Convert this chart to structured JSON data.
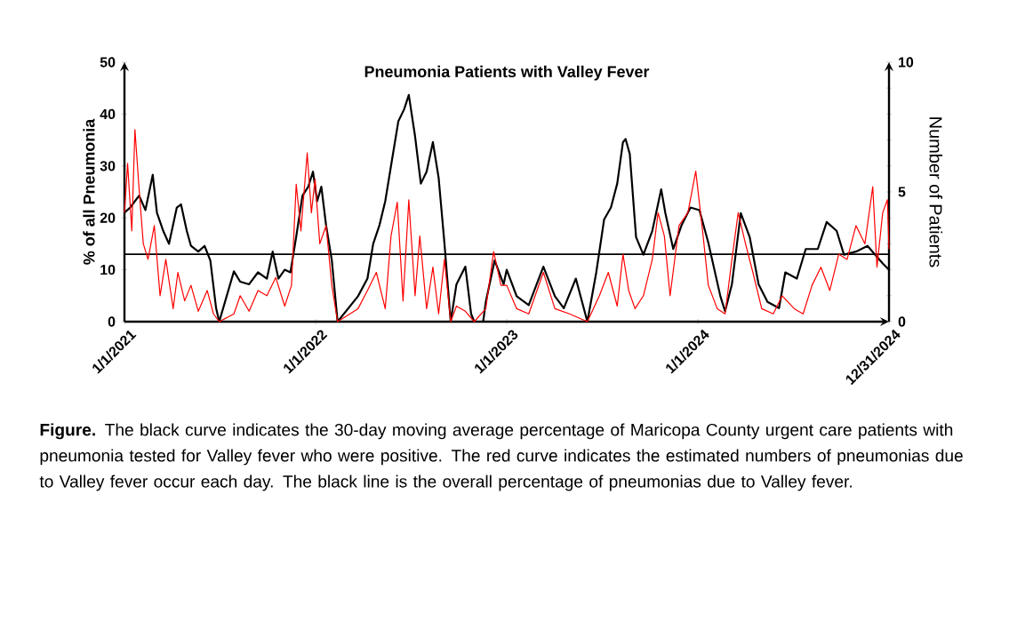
{
  "chart_data": {
    "type": "line",
    "title": "Pneumonia Patients with Valley Fever",
    "ylabel": "% of all Pneumonia",
    "y2label": "Number of Patients",
    "xlim": [
      "2021-01-01",
      "2024-12-31"
    ],
    "xticks": [
      {
        "value": "2021-01-01",
        "label": "1/1/2021"
      },
      {
        "value": "2022-01-01",
        "label": "1/1/2022"
      },
      {
        "value": "2023-01-01",
        "label": "1/1/2023"
      },
      {
        "value": "2024-01-01",
        "label": "1/1/2024"
      },
      {
        "value": "2024-12-31",
        "label": "12/31/2024"
      }
    ],
    "ylim": [
      0,
      50
    ],
    "yticks": [
      0,
      10,
      20,
      30,
      40,
      50
    ],
    "y2lim": [
      0,
      10
    ],
    "y2ticks": [
      0,
      {
        "value": 1,
        "label": null
      },
      {
        "value": 2,
        "label": null
      },
      {
        "value": 3,
        "label": null
      },
      {
        "value": 4,
        "label": null
      },
      5,
      {
        "value": 6,
        "label": null
      },
      {
        "value": 7,
        "label": null
      },
      {
        "value": 8,
        "label": null
      },
      {
        "value": 9,
        "label": null
      },
      10
    ],
    "ref_lines": [
      {
        "axis": "y",
        "value": 13,
        "color": "#000000"
      }
    ],
    "series": [
      {
        "color": "#000000",
        "axis": "y",
        "x": [
          "2021-01-01",
          "2021-01-12",
          "2021-01-29",
          "2021-02-10",
          "2021-02-24",
          "2021-03-04",
          "2021-03-16",
          "2021-03-27",
          "2021-04-11",
          "2021-04-19",
          "2021-04-30",
          "2021-05-08",
          "2021-05-22",
          "2021-06-03",
          "2021-06-14",
          "2021-06-25",
          "2021-07-01",
          "2021-07-29",
          "2021-08-10",
          "2021-08-27",
          "2021-09-13",
          "2021-09-30",
          "2021-10-11",
          "2021-10-22",
          "2021-11-03",
          "2021-11-14",
          "2021-11-25",
          "2021-12-07",
          "2021-12-18",
          "2021-12-27",
          "2022-01-04",
          "2022-01-12",
          "2022-01-21",
          "2022-02-01",
          "2022-02-12",
          "2022-03-23",
          "2022-04-10",
          "2022-04-21",
          "2022-05-03",
          "2022-05-14",
          "2022-05-25",
          "2022-06-08",
          "2022-06-19",
          "2022-06-28",
          "2022-07-10",
          "2022-07-21",
          "2022-08-01",
          "2022-08-13",
          "2022-08-24",
          "2022-09-04",
          "2022-09-16",
          "2022-09-27",
          "2022-10-14",
          "2022-10-25",
          "2022-10-31",
          "2022-11-17",
          "2022-11-22",
          "2022-12-09",
          "2022-12-26",
          "2023-01-01",
          "2023-01-20",
          "2023-02-12",
          "2023-03-12",
          "2023-04-03",
          "2023-04-20",
          "2023-05-13",
          "2023-06-04",
          "2023-06-21",
          "2023-07-06",
          "2023-07-19",
          "2023-07-31",
          "2023-08-11",
          "2023-08-16",
          "2023-08-24",
          "2023-09-05",
          "2023-09-19",
          "2023-10-06",
          "2023-10-23",
          "2023-10-31",
          "2023-11-15",
          "2023-12-01",
          "2023-12-18",
          "2024-01-04",
          "2024-01-21",
          "2024-02-13",
          "2024-02-22",
          "2024-03-06",
          "2024-03-23",
          "2024-04-09",
          "2024-04-26",
          "2024-05-13",
          "2024-06-04",
          "2024-06-16",
          "2024-07-08",
          "2024-07-25",
          "2024-08-17",
          "2024-09-03",
          "2024-09-22",
          "2024-10-06",
          "2024-10-29",
          "2024-11-20",
          "2024-12-19",
          "2024-12-31"
        ],
        "values": [
          21,
          22,
          24.3,
          21.5,
          28.3,
          21,
          17.5,
          15,
          22,
          22.6,
          17.5,
          14.6,
          13.5,
          14.6,
          11.8,
          2.6,
          0,
          9.7,
          7.7,
          7.2,
          9.5,
          8.3,
          13.5,
          8.3,
          10,
          9.5,
          16.4,
          24.3,
          26,
          28.9,
          23.2,
          26,
          18.6,
          11.8,
          0,
          4.9,
          8.3,
          15,
          18.6,
          23.2,
          30,
          38.6,
          40.9,
          43.7,
          35.7,
          26.6,
          28.9,
          34.6,
          27.7,
          15.2,
          0,
          7.2,
          10.6,
          1.5,
          0,
          0,
          3.8,
          11.8,
          7.2,
          10,
          4.9,
          3.2,
          10.6,
          4.9,
          2.6,
          8.3,
          0,
          9.5,
          19.7,
          22,
          26.6,
          34.6,
          35.2,
          32.3,
          16.3,
          12.9,
          17.5,
          25.5,
          20.9,
          14,
          18.6,
          22,
          21.5,
          15.2,
          4.9,
          2,
          7.2,
          20.9,
          16.3,
          7.2,
          3.8,
          2.6,
          9.5,
          8.3,
          14,
          14,
          19.2,
          17.5,
          12.9,
          13.5,
          14.6,
          11.2,
          10
        ]
      },
      {
        "color": "#ff0000",
        "axis": "y2",
        "x": [
          "2021-01-01",
          "2021-01-07",
          "2021-01-15",
          "2021-01-21",
          "2021-01-29",
          "2021-02-06",
          "2021-02-15",
          "2021-02-27",
          "2021-03-10",
          "2021-03-21",
          "2021-04-04",
          "2021-04-13",
          "2021-04-26",
          "2021-05-08",
          "2021-05-22",
          "2021-06-08",
          "2021-06-20",
          "2021-07-01",
          "2021-07-29",
          "2021-08-10",
          "2021-08-27",
          "2021-09-13",
          "2021-09-30",
          "2021-10-17",
          "2021-11-03",
          "2021-11-16",
          "2021-11-25",
          "2021-12-04",
          "2021-12-16",
          "2021-12-24",
          "2021-12-31",
          "2022-01-09",
          "2022-01-21",
          "2022-02-01",
          "2022-02-12",
          "2022-03-23",
          "2022-04-10",
          "2022-04-27",
          "2022-05-14",
          "2022-05-25",
          "2022-06-06",
          "2022-06-17",
          "2022-06-28",
          "2022-07-10",
          "2022-07-19",
          "2022-08-01",
          "2022-08-13",
          "2022-08-24",
          "2022-09-04",
          "2022-09-16",
          "2022-09-27",
          "2022-10-14",
          "2022-10-31",
          "2022-11-22",
          "2022-12-07",
          "2022-12-21",
          "2023-01-01",
          "2023-01-20",
          "2023-02-12",
          "2023-03-12",
          "2023-04-03",
          "2023-05-01",
          "2023-06-04",
          "2023-06-27",
          "2023-07-14",
          "2023-07-31",
          "2023-08-11",
          "2023-08-22",
          "2023-09-03",
          "2023-09-19",
          "2023-10-06",
          "2023-10-17",
          "2023-10-29",
          "2023-11-09",
          "2023-11-26",
          "2023-12-13",
          "2023-12-28",
          "2024-01-10",
          "2024-01-21",
          "2024-02-07",
          "2024-02-22",
          "2024-03-06",
          "2024-03-18",
          "2024-04-01",
          "2024-04-15",
          "2024-05-02",
          "2024-05-24",
          "2024-06-10",
          "2024-07-03",
          "2024-07-20",
          "2024-08-06",
          "2024-08-23",
          "2024-09-09",
          "2024-09-26",
          "2024-10-12",
          "2024-10-29",
          "2024-11-15",
          "2024-11-30",
          "2024-12-08",
          "2024-12-19",
          "2024-12-28",
          "2024-12-31"
        ],
        "values": [
          4.2,
          6.1,
          3.5,
          7.4,
          5.1,
          3.0,
          2.4,
          3.7,
          1.0,
          2.4,
          0.5,
          1.9,
          0.8,
          1.4,
          0.4,
          1.2,
          0.3,
          0,
          0.3,
          1.0,
          0.4,
          1.2,
          1.0,
          1.7,
          0.6,
          1.4,
          5.3,
          3.5,
          6.5,
          4.2,
          5.5,
          3.0,
          3.7,
          1.4,
          0,
          0.5,
          1.2,
          1.9,
          0.5,
          3.3,
          4.6,
          0.8,
          4.7,
          1.0,
          3.3,
          0.5,
          2.1,
          0.3,
          2.4,
          0,
          0.6,
          0.4,
          0,
          0.5,
          2.7,
          1.4,
          1.4,
          0.5,
          0.3,
          1.9,
          0.5,
          0.3,
          0,
          1.0,
          1.9,
          0.6,
          2.6,
          1.2,
          0.5,
          1.0,
          2.4,
          4.2,
          3.3,
          1.0,
          3.7,
          4.2,
          5.8,
          3.5,
          1.4,
          0.5,
          0.3,
          2.4,
          4.2,
          3.0,
          1.9,
          0.5,
          0.3,
          1.0,
          0.5,
          0.3,
          1.4,
          2.1,
          1.2,
          2.6,
          2.4,
          3.7,
          3.0,
          5.2,
          2.1,
          4.2,
          4.7,
          2.8
        ]
      }
    ],
    "annotations": [
      "**Figure.**  The black curve indicates the 30-day moving average percentage of Maricopa County urgent care patients with pneumonia tested for Valley fever who were positive.  The red curve indicates the estimated numbers of pneumonias due to Valley fever occur each day. The black line is the overall percentage of pneumonias due to Valley fever."
    ]
  }
}
